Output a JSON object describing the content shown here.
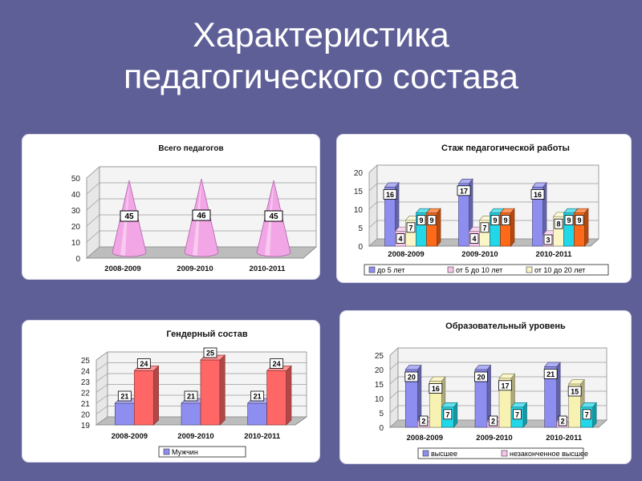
{
  "page": {
    "title_line1": "Характеристика",
    "title_line2": "педагогического состава"
  },
  "chart_data": [
    {
      "id": "total",
      "type": "bar",
      "shape": "cone",
      "title": "Всего педагогов",
      "categories": [
        "2008-2009",
        "2009-2010",
        "2010-2011"
      ],
      "series": [
        {
          "values": [
            45,
            46,
            45
          ],
          "color": "#f2a6e6"
        }
      ],
      "ylim": [
        0,
        50
      ],
      "yticks": [
        0,
        10,
        20,
        30,
        40,
        50
      ],
      "grid": true
    },
    {
      "id": "experience",
      "type": "bar",
      "title": "Стаж педагогической работы",
      "categories": [
        "2008-2009",
        "2009-2010",
        "2010-2011"
      ],
      "series": [
        {
          "name": "до 5 лет",
          "values": [
            16,
            17,
            16
          ],
          "color": "#8e8ef0"
        },
        {
          "name": "от 5 до 10 лет",
          "values": [
            4,
            4,
            3
          ],
          "color": "#f7c6ea"
        },
        {
          "name": "от 10 до 20 лет",
          "values": [
            7,
            7,
            8
          ],
          "color": "#fbf6c8"
        },
        {
          "values": [
            9,
            9,
            9
          ],
          "color": "#22d7e8"
        },
        {
          "values": [
            9,
            9,
            9
          ],
          "color": "#ff6a1a"
        }
      ],
      "ylim": [
        0,
        20
      ],
      "yticks": [
        0,
        5,
        10,
        15,
        20
      ],
      "grid": true,
      "legend": "bottom"
    },
    {
      "id": "gender",
      "type": "bar",
      "title": "Гендерный состав",
      "categories": [
        "2008-2009",
        "2009-2010",
        "2010-2011"
      ],
      "series": [
        {
          "name": "Мужчин",
          "values": [
            21,
            21,
            21
          ],
          "color": "#8e8ef0"
        },
        {
          "values": [
            24,
            25,
            24
          ],
          "color": "#ff6666"
        }
      ],
      "ylim": [
        19,
        25
      ],
      "yticks": [
        19,
        20,
        21,
        22,
        23,
        24,
        25
      ],
      "grid": true,
      "legend": "bottom"
    },
    {
      "id": "education",
      "type": "bar",
      "title": "Образовательный уровень",
      "categories": [
        "2008-2009",
        "2009-2010",
        "2010-2011"
      ],
      "series": [
        {
          "name": "высшее",
          "values": [
            20,
            20,
            21
          ],
          "color": "#8e8ef0"
        },
        {
          "name": "незаконченное  высшее",
          "values": [
            2,
            2,
            2
          ],
          "color": "#f7c6ea"
        },
        {
          "values": [
            16,
            17,
            15
          ],
          "color": "#f8f2b2"
        },
        {
          "values": [
            7,
            7,
            7
          ],
          "color": "#22d7e8"
        }
      ],
      "ylim": [
        0,
        25
      ],
      "yticks": [
        0,
        5,
        10,
        15,
        20,
        25
      ],
      "grid": true,
      "legend": "bottom"
    }
  ]
}
